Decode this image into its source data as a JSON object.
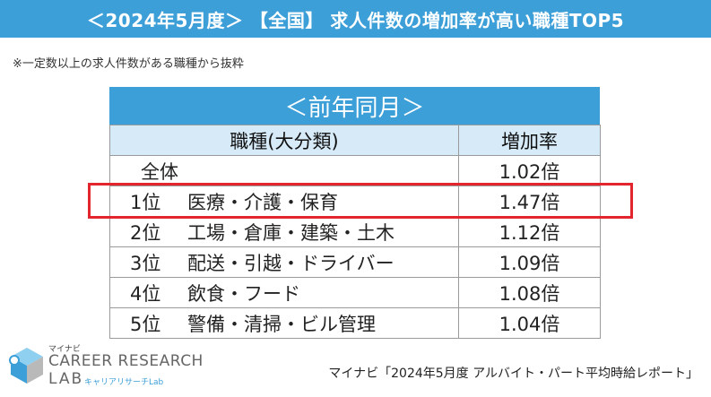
{
  "header": {
    "title": "＜2024年5月度＞ 【全国】 求人件数の増加率が高い職種TOP5"
  },
  "note": "※一定数以上の求人件数がある職種から抜粋",
  "table": {
    "band_title": "＜前年同月＞",
    "col_job": "職種(大分類)",
    "col_rate": "増加率",
    "all_label": "全体",
    "all_value": "1.02倍",
    "rows": [
      {
        "rank": "1位",
        "job": "医療・介護・保育",
        "value": "1.47倍"
      },
      {
        "rank": "2位",
        "job": "工場・倉庫・建築・土木",
        "value": "1.12倍"
      },
      {
        "rank": "3位",
        "job": "配送・引越・ドライバー",
        "value": "1.09倍"
      },
      {
        "rank": "4位",
        "job": "飲食・フード",
        "value": "1.08倍"
      },
      {
        "rank": "5位",
        "job": "警備・清掃・ビル管理",
        "value": "1.04倍"
      }
    ]
  },
  "logo": {
    "small": "マイナビ",
    "line1": "CAREER RESEARCH",
    "line2": "LAB",
    "line3": "キャリアリサーチLab"
  },
  "source": "マイナビ「2024年5月度 アルバイト・パート平均時給レポート」",
  "colors": {
    "accent": "#3d9fd8",
    "highlight": "#e3262d",
    "header_row": "#d6eaf8"
  }
}
